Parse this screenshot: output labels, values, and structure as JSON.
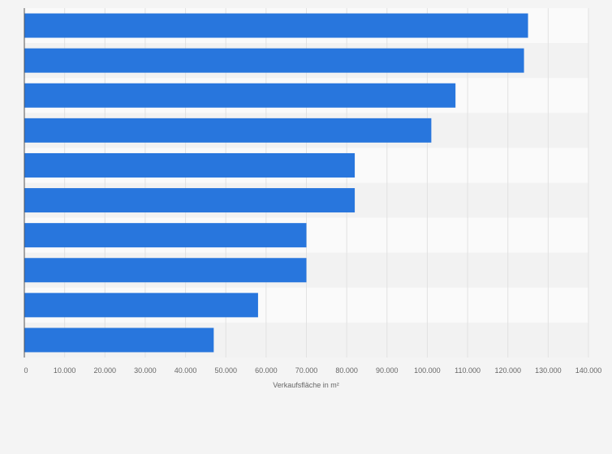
{
  "chart_data": {
    "type": "bar",
    "orientation": "horizontal",
    "title": "",
    "xlabel": "Verkaufsfläche in m²",
    "ylabel": "",
    "categories": [
      "",
      "",
      "",
      "",
      "",
      "",
      "",
      "",
      "",
      ""
    ],
    "values": [
      125000,
      124000,
      107000,
      101000,
      82000,
      82000,
      70000,
      70000,
      58000,
      47000
    ],
    "xlim": [
      0,
      140000
    ],
    "xticks": [
      0,
      10000,
      20000,
      30000,
      40000,
      50000,
      60000,
      70000,
      80000,
      90000,
      100000,
      110000,
      120000,
      130000,
      140000
    ],
    "xtick_labels": [
      "0",
      "10.000",
      "20.000",
      "30.000",
      "40.000",
      "50.000",
      "60.000",
      "70.000",
      "80.000",
      "90.000",
      "100.000",
      "110.000",
      "120.000",
      "130.000",
      "140.000"
    ],
    "grid": true,
    "legend": "none",
    "colors": {
      "bar": "#2876dd",
      "band_light": "#fafafa",
      "band_dark": "#f2f2f2",
      "grid": "#e2e2e2",
      "axis": "#555555",
      "tick_text": "#666666"
    }
  }
}
